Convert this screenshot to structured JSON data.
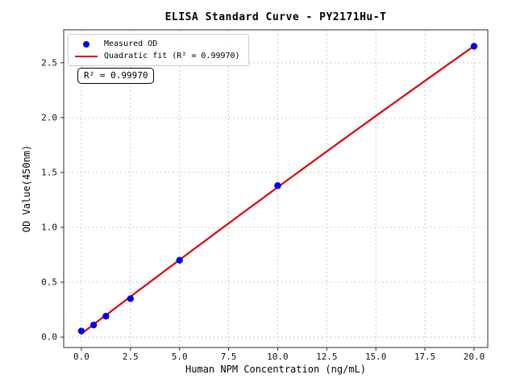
{
  "title": "ELISA Standard Curve - PY2171Hu-T",
  "axes": {
    "x_label": "Human NPM Concentration (ng/mL)",
    "y_label": "OD Value(450nm)"
  },
  "legend": {
    "items": [
      {
        "label": "Measured OD",
        "marker": "dot",
        "color": "#0000ee"
      },
      {
        "label": "Quadratic fit (R² = 0.99970)",
        "marker": "line",
        "color": "#e00000"
      }
    ],
    "position": "upper left"
  },
  "annotation": {
    "r2_label": "R² = 0.99970"
  },
  "chart_data": {
    "type": "scatter",
    "title": "ELISA Standard Curve - PY2171Hu-T",
    "xlabel": "Human NPM Concentration (ng/mL)",
    "ylabel": "OD Value(450nm)",
    "x_ticks": [
      0,
      2.5,
      5,
      7.5,
      10,
      12.5,
      15,
      17.5,
      20
    ],
    "y_ticks": [
      0,
      0.5,
      1.0,
      1.5,
      2.0,
      2.5
    ],
    "xlim": [
      -0.9,
      20.7
    ],
    "ylim": [
      -0.095,
      2.8
    ],
    "grid": true,
    "grid_style": "dashed",
    "series": [
      {
        "name": "Measured OD",
        "kind": "scatter",
        "color": "#0000ee",
        "x": [
          0,
          0.625,
          1.25,
          2.5,
          5,
          10,
          20
        ],
        "y": [
          0.055,
          0.11,
          0.19,
          0.35,
          0.7,
          1.38,
          2.65
        ]
      },
      {
        "name": "Quadratic fit",
        "kind": "line",
        "color": "#e00000",
        "fit_coefficients": {
          "c0": 0.0296,
          "c1": 0.1361,
          "c2": -0.000249
        },
        "x_range": [
          0,
          20
        ],
        "r_squared": 0.9997
      }
    ],
    "legend_position": "upper left"
  },
  "style": {
    "spine_color": "#2b2b2b",
    "grid_color": "#c9c9c9",
    "tick_label_color": "#111111",
    "background": "#ffffff"
  }
}
